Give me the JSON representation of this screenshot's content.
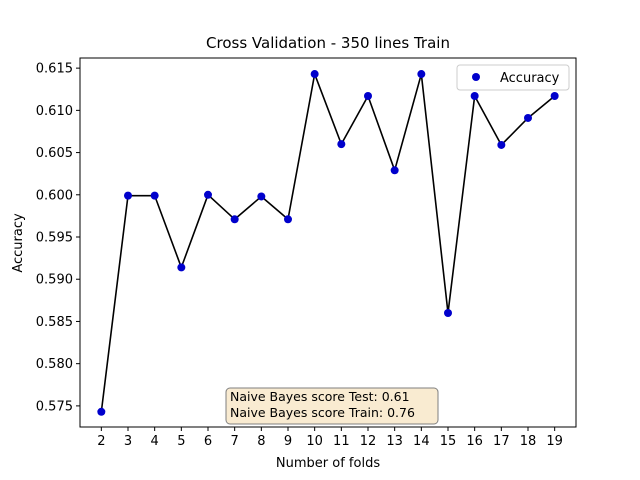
{
  "chart_data": {
    "type": "line",
    "title": "Cross Validation - 350 lines Train",
    "xlabel": "Number of folds",
    "ylabel": "Accuracy",
    "x": [
      2,
      3,
      4,
      5,
      6,
      7,
      8,
      9,
      10,
      11,
      12,
      13,
      14,
      15,
      16,
      17,
      18,
      19
    ],
    "y": [
      0.5743,
      0.5999,
      0.5999,
      0.5914,
      0.6,
      0.5971,
      0.5998,
      0.5971,
      0.6143,
      0.606,
      0.6117,
      0.6029,
      0.6143,
      0.586,
      0.6117,
      0.6059,
      0.6091,
      0.6117
    ],
    "xlim": [
      1.2,
      19.8
    ],
    "ylim": [
      0.5725,
      0.6162
    ],
    "xticks": [
      "2",
      "3",
      "4",
      "5",
      "6",
      "7",
      "8",
      "9",
      "10",
      "11",
      "12",
      "13",
      "14",
      "15",
      "16",
      "17",
      "18",
      "19"
    ],
    "yticks": [
      0.575,
      0.58,
      0.585,
      0.59,
      0.595,
      0.6,
      0.605,
      0.61,
      0.615
    ],
    "ytick_labels": [
      "0.575",
      "0.580",
      "0.585",
      "0.590",
      "0.595",
      "0.600",
      "0.605",
      "0.610",
      "0.615"
    ],
    "legend": {
      "label": "Accuracy",
      "position": "top-right"
    },
    "annotation": {
      "line1": "Naive Bayes score Test: 0.61",
      "line2": "Naive Bayes score Train: 0.76"
    },
    "colors": {
      "marker": "#0000cc",
      "line": "#000000",
      "annotation_fill": "#f5deb3",
      "annotation_border": "#7f7f7f"
    }
  }
}
